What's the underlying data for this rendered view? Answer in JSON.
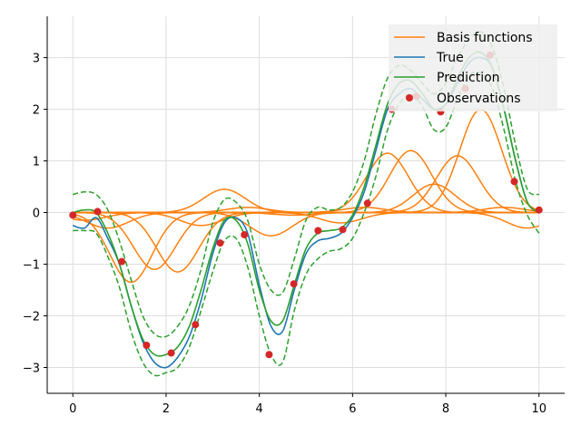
{
  "chart_data": {
    "type": "line",
    "title": "",
    "xlabel": "",
    "ylabel": "",
    "xlim": [
      -0.55,
      10.55
    ],
    "ylim": [
      -3.5,
      3.8
    ],
    "xticks": [
      0,
      2,
      4,
      6,
      8,
      10
    ],
    "yticks": [
      -3,
      -2,
      -1,
      0,
      1,
      2,
      3
    ],
    "xtick_labels": [
      "0",
      "2",
      "4",
      "6",
      "8",
      "10"
    ],
    "ytick_labels": [
      "−3",
      "−2",
      "−1",
      "0",
      "1",
      "2",
      "3"
    ],
    "grid": true,
    "legend_position": "top-right",
    "legend": [
      "Basis functions",
      "True",
      "Prediction",
      "Observations"
    ],
    "colors": {
      "basis": "#ff7f0e",
      "true": "#1f77b4",
      "prediction": "#2ca02c",
      "observations": "#d62728",
      "grid": "#dddddd",
      "axis": "#000000"
    },
    "true_curve": {
      "x": [
        0,
        0.25,
        0.5,
        0.75,
        1.0,
        1.25,
        1.5,
        1.75,
        2.0,
        2.25,
        2.5,
        2.75,
        3.0,
        3.25,
        3.5,
        3.75,
        4.0,
        4.25,
        4.5,
        4.75,
        5.0,
        5.25,
        5.5,
        5.75,
        6.0,
        6.25,
        6.5,
        6.75,
        7.0,
        7.25,
        7.5,
        7.75,
        8.0,
        8.25,
        8.5,
        8.75,
        9.0,
        9.25,
        9.5,
        9.75,
        10.0
      ],
      "y": [
        -0.25,
        -0.3,
        -0.1,
        -0.5,
        -1.0,
        -1.8,
        -2.5,
        -2.9,
        -3.0,
        -2.8,
        -2.4,
        -1.7,
        -0.8,
        -0.2,
        -0.1,
        -0.4,
        -1.4,
        -2.2,
        -2.3,
        -1.5,
        -0.8,
        -0.55,
        -0.5,
        -0.4,
        -0.1,
        0.4,
        1.2,
        2.0,
        2.3,
        2.4,
        2.2,
        2.0,
        2.1,
        2.5,
        2.9,
        3.0,
        2.8,
        2.0,
        1.0,
        0.2,
        0.0
      ]
    },
    "prediction": {
      "x": [
        0,
        0.25,
        0.5,
        0.75,
        1.0,
        1.25,
        1.5,
        1.75,
        2.0,
        2.25,
        2.5,
        2.75,
        3.0,
        3.25,
        3.5,
        3.75,
        4.0,
        4.25,
        4.5,
        4.75,
        5.0,
        5.25,
        5.5,
        5.75,
        6.0,
        6.25,
        6.5,
        6.75,
        7.0,
        7.25,
        7.5,
        7.75,
        8.0,
        8.25,
        8.5,
        8.75,
        9.0,
        9.25,
        9.5,
        9.75,
        10.0
      ],
      "mean": [
        0.0,
        0.05,
        0.0,
        -0.4,
        -1.0,
        -1.8,
        -2.45,
        -2.75,
        -2.75,
        -2.6,
        -2.2,
        -1.5,
        -0.7,
        -0.15,
        -0.15,
        -0.6,
        -1.5,
        -2.1,
        -2.1,
        -1.4,
        -0.7,
        -0.4,
        -0.35,
        -0.3,
        -0.05,
        0.5,
        1.3,
        2.1,
        2.5,
        2.55,
        2.3,
        2.0,
        2.1,
        2.6,
        3.0,
        3.1,
        2.8,
        2.0,
        1.0,
        0.2,
        0.0
      ],
      "upper": [
        0.35,
        0.4,
        0.35,
        0.05,
        -0.55,
        -1.3,
        -2.0,
        -2.35,
        -2.4,
        -2.2,
        -1.8,
        -1.1,
        -0.2,
        0.25,
        0.2,
        -0.15,
        -1.0,
        -1.5,
        -1.55,
        -0.9,
        -0.15,
        0.1,
        0.05,
        0.1,
        0.4,
        1.0,
        1.9,
        2.6,
        2.85,
        2.75,
        2.5,
        2.3,
        2.5,
        3.0,
        3.35,
        3.5,
        3.2,
        2.4,
        1.3,
        0.45,
        0.35
      ],
      "lower": [
        -0.35,
        -0.35,
        -0.4,
        -0.85,
        -1.45,
        -2.3,
        -2.9,
        -3.15,
        -3.1,
        -3.0,
        -2.6,
        -1.9,
        -1.15,
        -0.55,
        -0.5,
        -1.05,
        -2.0,
        -2.75,
        -2.9,
        -1.9,
        -1.2,
        -0.9,
        -0.75,
        -0.7,
        -0.5,
        0.0,
        0.7,
        1.6,
        2.1,
        2.3,
        2.05,
        1.6,
        1.65,
        2.2,
        2.65,
        2.7,
        2.4,
        1.6,
        0.6,
        -0.05,
        -0.4
      ]
    },
    "basis_centers": [
      0.25,
      0.75,
      1.25,
      1.75,
      2.25,
      2.75,
      3.25,
      3.75,
      4.25,
      4.75,
      5.25,
      5.75,
      6.25,
      6.75,
      7.25,
      7.75,
      8.25,
      8.75,
      9.25,
      9.75
    ],
    "basis_weights": [
      -0.15,
      -0.3,
      -1.35,
      -1.1,
      -1.15,
      -0.25,
      0.45,
      0.1,
      -0.45,
      -0.05,
      0.0,
      -0.2,
      0.1,
      1.15,
      1.2,
      0.55,
      1.1,
      2.0,
      0.1,
      -0.3
    ],
    "basis_width": 0.45,
    "observations": {
      "x": [
        0.0,
        0.53,
        1.05,
        1.58,
        2.11,
        2.63,
        3.16,
        3.68,
        4.21,
        4.74,
        5.26,
        5.79,
        6.32,
        6.84,
        7.37,
        7.89,
        8.42,
        8.95,
        9.47,
        10.0
      ],
      "y": [
        -0.05,
        0.02,
        -0.95,
        -2.57,
        -2.72,
        -2.17,
        -0.59,
        -0.43,
        -2.75,
        -1.38,
        -0.35,
        -0.33,
        0.18,
        2.0,
        2.25,
        1.95,
        2.4,
        3.05,
        0.6,
        0.05
      ]
    }
  }
}
